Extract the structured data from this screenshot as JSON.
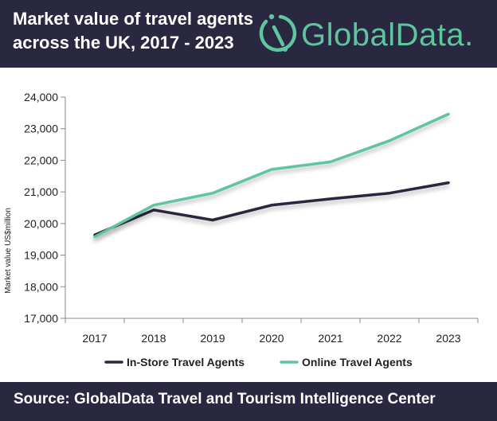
{
  "header": {
    "title_line1": "Market value of travel agents",
    "title_line2": "across the UK, 2017 - 2023",
    "brand": "GlobalData."
  },
  "footer": {
    "source": "Source:  GlobalData Travel and Tourism Intelligence Center"
  },
  "colors": {
    "header_bg": "#2a2740",
    "in_store": "#2a2740",
    "online": "#5fc4a0"
  },
  "icons": [
    "globaldata-logo-icon"
  ],
  "chart_data": {
    "type": "line",
    "title": "Market value of travel agents across the UK, 2017 - 2023",
    "xlabel": "",
    "ylabel": "Market value US$million",
    "categories": [
      "2017",
      "2018",
      "2019",
      "2020",
      "2021",
      "2022",
      "2023"
    ],
    "ylim": [
      17000,
      24000
    ],
    "yticks": [
      17000,
      18000,
      19000,
      20000,
      21000,
      22000,
      23000,
      24000
    ],
    "ytick_labels": [
      "17,000",
      "18,000",
      "19,000",
      "20,000",
      "21,000",
      "22,000",
      "23,000",
      "24,000"
    ],
    "grid": false,
    "legend_position": "bottom",
    "series": [
      {
        "name": "In-Store Travel Agents",
        "color": "#2a2740",
        "values": [
          19640,
          20430,
          20110,
          20580,
          20780,
          20960,
          21290
        ]
      },
      {
        "name": "Online Travel Agents",
        "color": "#5fc4a0",
        "values": [
          19580,
          20580,
          20960,
          21710,
          21950,
          22620,
          23460
        ]
      }
    ]
  }
}
